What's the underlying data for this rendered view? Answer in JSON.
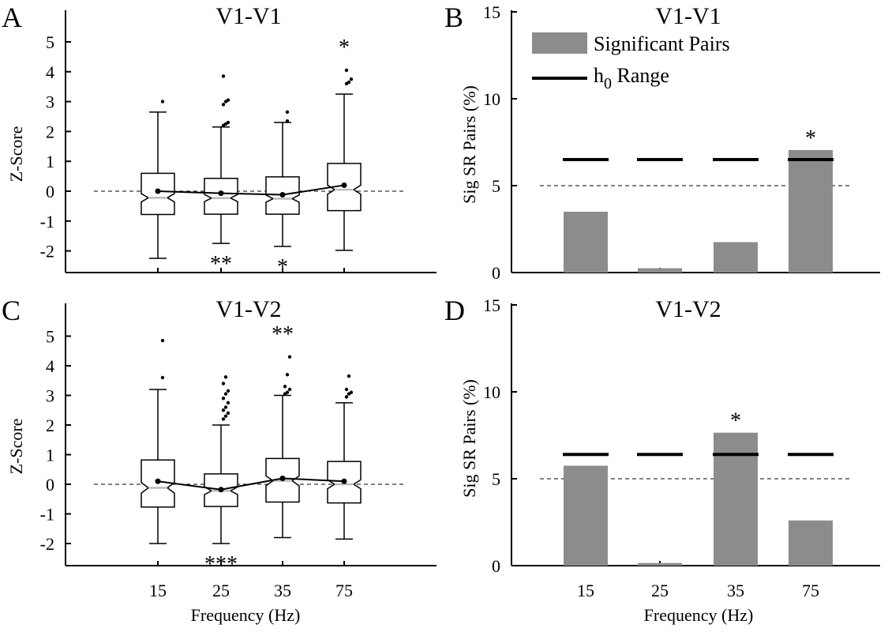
{
  "colors": {
    "bar": "#8c8c8c",
    "axis": "#000000",
    "median": "#bbbbbb"
  },
  "legend": {
    "bar_label": "Significant Pairs",
    "range_label_main": "h",
    "range_label_sub": "0",
    "range_label_rest": " Range"
  },
  "shared_xlabel": "Frequency (Hz)",
  "panels": [
    {
      "letter": "A",
      "title": "V1-V1",
      "ylabel": "Z-Score"
    },
    {
      "letter": "B",
      "title": "V1-V1",
      "ylabel": "Sig SR Pairs (%)"
    },
    {
      "letter": "C",
      "title": "V1-V2",
      "ylabel": "Z-Score"
    },
    {
      "letter": "D",
      "title": "V1-V2",
      "ylabel": "Sig SR Pairs (%)"
    }
  ],
  "chart_data": [
    {
      "panel": "A",
      "type": "box",
      "title": "V1-V1",
      "ylabel": "Z-Score",
      "categories": [
        "15",
        "25",
        "35",
        "75"
      ],
      "ylim": [
        -2.7,
        6
      ],
      "yticks": [
        -2,
        -1,
        0,
        1,
        2,
        3,
        4,
        5
      ],
      "reference_line": 0,
      "boxes": [
        {
          "q1": -0.78,
          "median": -0.22,
          "q3": 0.6,
          "notch_lo": -0.36,
          "notch_hi": -0.08,
          "wlo": -2.25,
          "whi": 2.65,
          "mean": 0.0,
          "outliers": [
            3.0
          ],
          "stars": ""
        },
        {
          "q1": -0.77,
          "median": -0.23,
          "q3": 0.43,
          "notch_lo": -0.35,
          "notch_hi": -0.11,
          "wlo": -1.75,
          "whi": 2.15,
          "mean": -0.07,
          "outliers": [
            2.2,
            2.25,
            2.3,
            2.9,
            3.0,
            3.05,
            3.85
          ],
          "stars": "**"
        },
        {
          "q1": -0.77,
          "median": -0.25,
          "q3": 0.48,
          "notch_lo": -0.37,
          "notch_hi": -0.13,
          "wlo": -1.85,
          "whi": 2.3,
          "mean": -0.12,
          "outliers": [
            2.35,
            2.65
          ],
          "stars": "*"
        },
        {
          "q1": -0.65,
          "median": 0.05,
          "q3": 0.93,
          "notch_lo": -0.1,
          "notch_hi": 0.2,
          "wlo": -1.98,
          "whi": 3.25,
          "mean": 0.2,
          "outliers": [
            3.6,
            3.65,
            3.75,
            4.05
          ],
          "stars": "*"
        }
      ]
    },
    {
      "panel": "B",
      "type": "bar",
      "title": "V1-V1",
      "ylabel": "Sig SR Pairs (%)",
      "categories": [
        "15",
        "25",
        "35",
        "75"
      ],
      "values": [
        3.5,
        0.25,
        1.75,
        7.05
      ],
      "h0_range": [
        6.5,
        6.5,
        6.5,
        6.5
      ],
      "reference_line": 5,
      "ylim": [
        0,
        15
      ],
      "yticks": [
        0,
        5,
        10,
        15
      ],
      "stars": [
        "",
        "",
        "",
        "*"
      ],
      "legend": [
        "Significant Pairs",
        "h0 Range"
      ],
      "legend_position": "top-left"
    },
    {
      "panel": "C",
      "type": "box",
      "title": "V1-V2",
      "ylabel": "Z-Score",
      "xlabel": "Frequency (Hz)",
      "categories": [
        "15",
        "25",
        "35",
        "75"
      ],
      "ylim": [
        -2.7,
        6
      ],
      "yticks": [
        -2,
        -1,
        0,
        1,
        2,
        3,
        4,
        5
      ],
      "reference_line": 0,
      "boxes": [
        {
          "q1": -0.77,
          "median": -0.12,
          "q3": 0.82,
          "notch_lo": -0.3,
          "notch_hi": 0.06,
          "wlo": -2.0,
          "whi": 3.2,
          "mean": 0.1,
          "outliers": [
            3.6,
            4.85
          ],
          "stars": ""
        },
        {
          "q1": -0.75,
          "median": -0.22,
          "q3": 0.35,
          "notch_lo": -0.35,
          "notch_hi": -0.09,
          "wlo": -2.0,
          "whi": 2.0,
          "mean": -0.18,
          "outliers": [
            2.2,
            2.3,
            2.4,
            2.5,
            2.6,
            2.75,
            2.9,
            3.05,
            3.15,
            3.4,
            3.62
          ],
          "stars": "***"
        },
        {
          "q1": -0.6,
          "median": 0.12,
          "q3": 0.87,
          "notch_lo": -0.05,
          "notch_hi": 0.28,
          "wlo": -1.8,
          "whi": 3.0,
          "mean": 0.2,
          "outliers": [
            3.05,
            3.1,
            3.2,
            3.3,
            3.7,
            4.3
          ],
          "stars": "**"
        },
        {
          "q1": -0.63,
          "median": 0.0,
          "q3": 0.77,
          "notch_lo": -0.15,
          "notch_hi": 0.15,
          "wlo": -1.85,
          "whi": 2.75,
          "mean": 0.1,
          "outliers": [
            2.95,
            3.05,
            3.1,
            3.2,
            3.65
          ],
          "stars": ""
        }
      ]
    },
    {
      "panel": "D",
      "type": "bar",
      "title": "V1-V2",
      "ylabel": "Sig SR Pairs (%)",
      "xlabel": "Frequency (Hz)",
      "categories": [
        "15",
        "25",
        "35",
        "75"
      ],
      "values": [
        5.75,
        0.15,
        7.65,
        2.6
      ],
      "h0_range": [
        6.4,
        6.4,
        6.4,
        6.4
      ],
      "reference_line": 5,
      "ylim": [
        0,
        15
      ],
      "yticks": [
        0,
        5,
        10,
        15
      ],
      "stars": [
        "",
        "",
        "*",
        ""
      ]
    }
  ]
}
